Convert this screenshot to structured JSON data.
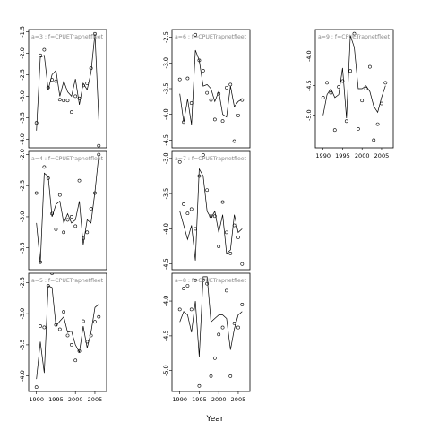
{
  "chart_data": {
    "type": "scatter",
    "xlabel": "Year",
    "panels": [
      {
        "label": "a=3 : f=CPUETrapnetfleet",
        "xlim": [
          1988,
          2008
        ],
        "ylim": [
          -4.2,
          -1.45
        ],
        "yticks": [
          -4.0,
          -3.5,
          -3.0,
          -2.5,
          -2.0,
          -1.5
        ],
        "ytick_labels": [
          "-4.0",
          "-3.5",
          "-3.0",
          "-2.5",
          "-2.0",
          "-1.5"
        ],
        "obs": [
          [
            1990,
            -3.62
          ],
          [
            1991,
            -2.05
          ],
          [
            1992,
            -1.92
          ],
          [
            1993,
            -2.8
          ],
          [
            1994,
            -2.62
          ],
          [
            1995,
            -2.65
          ],
          [
            1996,
            -3.08
          ],
          [
            1997,
            -3.1
          ],
          [
            1998,
            -3.1
          ],
          [
            1999,
            -3.37
          ],
          [
            2000,
            -3.0
          ],
          [
            2001,
            -3.05
          ],
          [
            2002,
            -2.75
          ],
          [
            2003,
            -2.7
          ],
          [
            2004,
            -2.35
          ],
          [
            2005,
            -1.55
          ],
          [
            2006,
            -4.15
          ]
        ],
        "fit": [
          [
            1990,
            -3.8
          ],
          [
            1991,
            -2.1
          ],
          [
            1992,
            -2.05
          ],
          [
            1993,
            -2.85
          ],
          [
            1994,
            -2.5
          ],
          [
            1995,
            -2.4
          ],
          [
            1996,
            -3.0
          ],
          [
            1997,
            -2.65
          ],
          [
            1998,
            -2.9
          ],
          [
            1999,
            -3.0
          ],
          [
            2000,
            -2.6
          ],
          [
            2001,
            -3.2
          ],
          [
            2002,
            -2.7
          ],
          [
            2003,
            -2.85
          ],
          [
            2004,
            -2.45
          ],
          [
            2005,
            -1.55
          ],
          [
            2006,
            -3.55
          ]
        ]
      },
      {
        "label": "a=4 : f=CPUETrapnetfleet",
        "xlim": [
          1988,
          2008
        ],
        "ylim": [
          -3.85,
          -1.95
        ],
        "yticks": [
          -3.5,
          -3.0,
          -2.5,
          -2.0
        ],
        "ytick_labels": [
          "-3.5",
          "-3.0",
          "-2.5",
          "-2.0"
        ],
        "obs": [
          [
            1990,
            -2.62
          ],
          [
            1991,
            -3.73
          ],
          [
            1992,
            -2.2
          ],
          [
            1993,
            -2.38
          ],
          [
            1994,
            -2.95
          ],
          [
            1995,
            -3.2
          ],
          [
            1996,
            -2.65
          ],
          [
            1997,
            -3.25
          ],
          [
            1998,
            -3.05
          ],
          [
            1999,
            -3.0
          ],
          [
            2000,
            -3.15
          ],
          [
            2001,
            -2.42
          ],
          [
            2002,
            -3.35
          ],
          [
            2003,
            -3.25
          ],
          [
            2004,
            -2.87
          ],
          [
            2005,
            -2.62
          ],
          [
            2006,
            -2.0
          ]
        ],
        "fit": [
          [
            1990,
            -3.1
          ],
          [
            1991,
            -3.75
          ],
          [
            1992,
            -2.3
          ],
          [
            1993,
            -2.35
          ],
          [
            1994,
            -3.0
          ],
          [
            1995,
            -2.8
          ],
          [
            1996,
            -2.75
          ],
          [
            1997,
            -3.1
          ],
          [
            1998,
            -2.95
          ],
          [
            1999,
            -3.1
          ],
          [
            2000,
            -3.05
          ],
          [
            2001,
            -2.75
          ],
          [
            2002,
            -3.45
          ],
          [
            2003,
            -3.05
          ],
          [
            2004,
            -3.1
          ],
          [
            2005,
            -2.6
          ],
          [
            2006,
            -2.0
          ]
        ]
      },
      {
        "label": "a=5 : f=CPUETrapnetfleet",
        "xlim": [
          1988,
          2008
        ],
        "ylim": [
          -4.25,
          -2.35
        ],
        "yticks": [
          -4.0,
          -3.5,
          -3.0,
          -2.5
        ],
        "ytick_labels": [
          "-4.0",
          "-3.5",
          "-3.0",
          "-2.5"
        ],
        "obs": [
          [
            1990,
            -4.18
          ],
          [
            1991,
            -3.2
          ],
          [
            1992,
            -3.22
          ],
          [
            1993,
            -2.55
          ],
          [
            1994,
            -2.35
          ],
          [
            1995,
            -3.18
          ],
          [
            1996,
            -3.25
          ],
          [
            1997,
            -2.97
          ],
          [
            1998,
            -3.35
          ],
          [
            1999,
            -3.5
          ],
          [
            2000,
            -3.75
          ],
          [
            2001,
            -3.6
          ],
          [
            2002,
            -3.12
          ],
          [
            2003,
            -3.45
          ],
          [
            2004,
            -3.35
          ],
          [
            2005,
            -3.13
          ],
          [
            2006,
            -3.05
          ]
        ],
        "fit": [
          [
            1990,
            -4.05
          ],
          [
            1991,
            -3.45
          ],
          [
            1992,
            -3.95
          ],
          [
            1993,
            -2.55
          ],
          [
            1994,
            -2.58
          ],
          [
            1995,
            -3.2
          ],
          [
            1996,
            -3.12
          ],
          [
            1997,
            -3.05
          ],
          [
            1998,
            -3.3
          ],
          [
            1999,
            -3.28
          ],
          [
            2000,
            -3.5
          ],
          [
            2001,
            -3.62
          ],
          [
            2002,
            -3.2
          ],
          [
            2003,
            -3.55
          ],
          [
            2004,
            -3.3
          ],
          [
            2005,
            -2.9
          ],
          [
            2006,
            -2.85
          ]
        ]
      },
      {
        "label": "a=6 : f=CPUETrapnetfleet",
        "xlim": [
          1988,
          2008
        ],
        "ylim": [
          -4.65,
          -2.35
        ],
        "yticks": [
          -4.5,
          -4.0,
          -3.5,
          -3.0,
          -2.5
        ],
        "ytick_labels": [
          "-4.5",
          "-4.0",
          "-3.5",
          "-3.0",
          "-2.5"
        ],
        "obs": [
          [
            1990,
            -3.32
          ],
          [
            1991,
            -4.15
          ],
          [
            1992,
            -3.3
          ],
          [
            1993,
            -3.78
          ],
          [
            1994,
            -2.45
          ],
          [
            1995,
            -2.95
          ],
          [
            1996,
            -3.15
          ],
          [
            1997,
            -3.58
          ],
          [
            1998,
            -3.72
          ],
          [
            1999,
            -4.1
          ],
          [
            2000,
            -3.6
          ],
          [
            2001,
            -4.13
          ],
          [
            2002,
            -3.48
          ],
          [
            2003,
            -3.42
          ],
          [
            2004,
            -4.52
          ],
          [
            2005,
            -4.02
          ],
          [
            2006,
            -3.72
          ]
        ],
        "fit": [
          [
            1990,
            -3.6
          ],
          [
            1991,
            -4.15
          ],
          [
            1992,
            -3.7
          ],
          [
            1993,
            -4.2
          ],
          [
            1994,
            -2.75
          ],
          [
            1995,
            -2.95
          ],
          [
            1996,
            -3.45
          ],
          [
            1997,
            -3.42
          ],
          [
            1998,
            -3.5
          ],
          [
            1999,
            -3.75
          ],
          [
            2000,
            -3.55
          ],
          [
            2001,
            -4.0
          ],
          [
            2002,
            -4.05
          ],
          [
            2003,
            -3.45
          ],
          [
            2004,
            -3.85
          ],
          [
            2005,
            -3.75
          ],
          [
            2006,
            -3.7
          ]
        ]
      },
      {
        "label": "a=7 : f=CPUETrapnetfleet",
        "xlim": [
          1988,
          2008
        ],
        "ylim": [
          -4.58,
          -2.9
        ],
        "yticks": [
          -4.5,
          -4.0,
          -3.5,
          -3.0
        ],
        "ytick_labels": [
          "-4.5",
          "-4.0",
          "-3.5",
          "-3.0"
        ],
        "obs": [
          [
            1990,
            -3.05
          ],
          [
            1991,
            -3.65
          ],
          [
            1992,
            -3.78
          ],
          [
            1993,
            -3.72
          ],
          [
            1994,
            -4.0
          ],
          [
            1995,
            -3.25
          ],
          [
            1996,
            -2.95
          ],
          [
            1997,
            -3.45
          ],
          [
            1998,
            -3.82
          ],
          [
            1999,
            -3.82
          ],
          [
            2000,
            -4.25
          ],
          [
            2001,
            -3.62
          ],
          [
            2002,
            -4.05
          ],
          [
            2003,
            -4.35
          ],
          [
            2004,
            -3.95
          ],
          [
            2005,
            -4.12
          ],
          [
            2006,
            -4.5
          ]
        ],
        "fit": [
          [
            1990,
            -3.75
          ],
          [
            1991,
            -3.95
          ],
          [
            1992,
            -4.15
          ],
          [
            1993,
            -3.95
          ],
          [
            1994,
            -4.45
          ],
          [
            1995,
            -3.15
          ],
          [
            1996,
            -3.25
          ],
          [
            1997,
            -3.75
          ],
          [
            1998,
            -3.85
          ],
          [
            1999,
            -3.75
          ],
          [
            2000,
            -4.05
          ],
          [
            2001,
            -3.8
          ],
          [
            2002,
            -4.35
          ],
          [
            2003,
            -4.3
          ],
          [
            2004,
            -3.8
          ],
          [
            2005,
            -4.05
          ],
          [
            2006,
            -4.0
          ]
        ]
      },
      {
        "label": "a=8 : f=CPUETrapnetfleet",
        "xlim": [
          1988,
          2008
        ],
        "ylim": [
          -5.3,
          -3.6
        ],
        "yticks": [
          -5.0,
          -4.5,
          -4.0
        ],
        "ytick_labels": [
          "-5.0",
          "-4.5",
          "-4.0"
        ],
        "obs": [
          [
            1990,
            -4.12
          ],
          [
            1991,
            -3.82
          ],
          [
            1992,
            -3.78
          ],
          [
            1993,
            -4.12
          ],
          [
            1994,
            -3.7
          ],
          [
            1995,
            -5.22
          ],
          [
            1996,
            -3.7
          ],
          [
            1997,
            -3.75
          ],
          [
            1998,
            -5.08
          ],
          [
            1999,
            -4.82
          ],
          [
            2000,
            -4.48
          ],
          [
            2001,
            -4.38
          ],
          [
            2002,
            -3.85
          ],
          [
            2003,
            -5.08
          ],
          [
            2004,
            -4.32
          ],
          [
            2005,
            -4.38
          ],
          [
            2006,
            -4.05
          ]
        ],
        "fit": [
          [
            1990,
            -4.3
          ],
          [
            1991,
            -4.15
          ],
          [
            1992,
            -4.2
          ],
          [
            1993,
            -4.45
          ],
          [
            1994,
            -4.0
          ],
          [
            1995,
            -4.8
          ],
          [
            1996,
            -3.65
          ],
          [
            1997,
            -3.65
          ],
          [
            1998,
            -4.3
          ],
          [
            1999,
            -4.25
          ],
          [
            2000,
            -4.2
          ],
          [
            2001,
            -4.2
          ],
          [
            2002,
            -4.25
          ],
          [
            2003,
            -4.7
          ],
          [
            2004,
            -4.4
          ],
          [
            2005,
            -4.2
          ],
          [
            2006,
            -4.15
          ]
        ]
      },
      {
        "label": "a=9 : f=CPUETrapnetfleet",
        "xlim": [
          1988,
          2008
        ],
        "ylim": [
          -5.55,
          -3.55
        ],
        "yticks": [
          -5.0,
          -4.5,
          -4.0
        ],
        "ytick_labels": [
          "-5.0",
          "-4.5",
          "-4.0"
        ],
        "obs": [
          [
            1990,
            -4.7
          ],
          [
            1991,
            -4.45
          ],
          [
            1992,
            -4.62
          ],
          [
            1993,
            -5.25
          ],
          [
            1994,
            -4.52
          ],
          [
            1995,
            -4.42
          ],
          [
            1996,
            -5.1
          ],
          [
            1997,
            -4.25
          ],
          [
            1998,
            -3.62
          ],
          [
            1999,
            -5.23
          ],
          [
            2000,
            -4.75
          ],
          [
            2001,
            -4.55
          ],
          [
            2002,
            -4.18
          ],
          [
            2003,
            -5.42
          ],
          [
            2004,
            -5.15
          ],
          [
            2005,
            -4.8
          ],
          [
            2006,
            -4.45
          ]
        ],
        "fit": [
          [
            1990,
            -5.0
          ],
          [
            1991,
            -4.65
          ],
          [
            1992,
            -4.55
          ],
          [
            1993,
            -4.7
          ],
          [
            1994,
            -4.65
          ],
          [
            1995,
            -4.2
          ],
          [
            1996,
            -5.05
          ],
          [
            1997,
            -3.65
          ],
          [
            1998,
            -3.85
          ],
          [
            1999,
            -4.55
          ],
          [
            2000,
            -4.55
          ],
          [
            2001,
            -4.5
          ],
          [
            2002,
            -4.6
          ],
          [
            2003,
            -4.85
          ],
          [
            2004,
            -4.95
          ],
          [
            2005,
            -4.7
          ],
          [
            2006,
            -4.5
          ]
        ]
      }
    ],
    "xticks": [
      1990,
      1995,
      2000,
      2005
    ],
    "xtick_labels": [
      "1990",
      "1995",
      "2000",
      "2005"
    ]
  }
}
